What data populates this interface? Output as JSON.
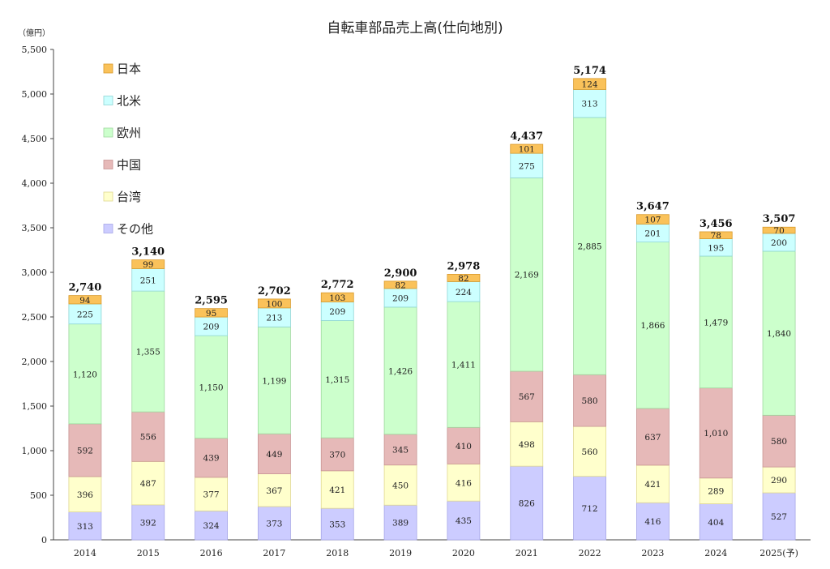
{
  "chart_data": {
    "type": "bar",
    "stacked": true,
    "title": "自転車部品売上高(仕向地別)",
    "ylabel": "（億円）",
    "xlabel": "",
    "ylim": [
      0,
      5500
    ],
    "yticks": [
      0,
      500,
      1000,
      1500,
      2000,
      2500,
      3000,
      3500,
      4000,
      4500,
      5000,
      5500
    ],
    "ytick_labels": [
      "0",
      "500",
      "1,000",
      "1,500",
      "2,000",
      "2,500",
      "3,000",
      "3,500",
      "4,000",
      "4,500",
      "5,000",
      "5,500"
    ],
    "categories": [
      "2014",
      "2015",
      "2016",
      "2017",
      "2018",
      "2019",
      "2020",
      "2021",
      "2022",
      "2023",
      "2024",
      "2025(予)"
    ],
    "totals": [
      "2,740",
      "3,140",
      "2,595",
      "2,702",
      "2,772",
      "2,900",
      "2,978",
      "4,437",
      "5,174",
      "3,647",
      "3,456",
      "3,507"
    ],
    "legend_position": "top-left",
    "series": [
      {
        "name": "その他",
        "color": "#ccccff",
        "edge": "#a8a8e8",
        "values": [
          313,
          392,
          324,
          373,
          353,
          389,
          435,
          826,
          712,
          416,
          404,
          527
        ],
        "labels": [
          "313",
          "392",
          "324",
          "373",
          "353",
          "389",
          "435",
          "826",
          "712",
          "416",
          "404",
          "527"
        ]
      },
      {
        "name": "台湾",
        "color": "#ffffcc",
        "edge": "#e0d890",
        "values": [
          396,
          487,
          377,
          367,
          421,
          450,
          416,
          498,
          560,
          421,
          289,
          290
        ],
        "labels": [
          "396",
          "487",
          "377",
          "367",
          "421",
          "450",
          "416",
          "498",
          "560",
          "421",
          "289",
          "290"
        ]
      },
      {
        "name": "中国",
        "color": "#e6b9b8",
        "edge": "#c99594",
        "values": [
          592,
          556,
          439,
          449,
          370,
          345,
          410,
          567,
          580,
          637,
          1010,
          580
        ],
        "labels": [
          "592",
          "556",
          "439",
          "449",
          "370",
          "345",
          "410",
          "567",
          "580",
          "637",
          "1,010",
          "580"
        ]
      },
      {
        "name": "欧州",
        "color": "#ccffcc",
        "edge": "#9fd89f",
        "values": [
          1120,
          1355,
          1150,
          1199,
          1315,
          1426,
          1411,
          2169,
          2885,
          1866,
          1479,
          1840
        ],
        "labels": [
          "1,120",
          "1,355",
          "1,150",
          "1,199",
          "1,315",
          "1,426",
          "1,411",
          "2,169",
          "2,885",
          "1,866",
          "1,479",
          "1,840"
        ]
      },
      {
        "name": "北米",
        "color": "#ccffff",
        "edge": "#8fd6d6",
        "values": [
          225,
          251,
          209,
          213,
          209,
          209,
          224,
          275,
          313,
          201,
          195,
          200
        ],
        "labels": [
          "225",
          "251",
          "209",
          "213",
          "209",
          "209",
          "224",
          "275",
          "313",
          "201",
          "195",
          "200"
        ]
      },
      {
        "name": "日本",
        "color": "#fac25a",
        "edge": "#d99a2c",
        "values": [
          94,
          99,
          95,
          100,
          103,
          82,
          82,
          101,
          124,
          107,
          78,
          70
        ],
        "labels": [
          "94",
          "99",
          "95",
          "100",
          "103",
          "82",
          "82",
          "101",
          "124",
          "107",
          "78",
          "70"
        ]
      }
    ],
    "legend_order": [
      "日本",
      "北米",
      "欧州",
      "中国",
      "台湾",
      "その他"
    ]
  }
}
